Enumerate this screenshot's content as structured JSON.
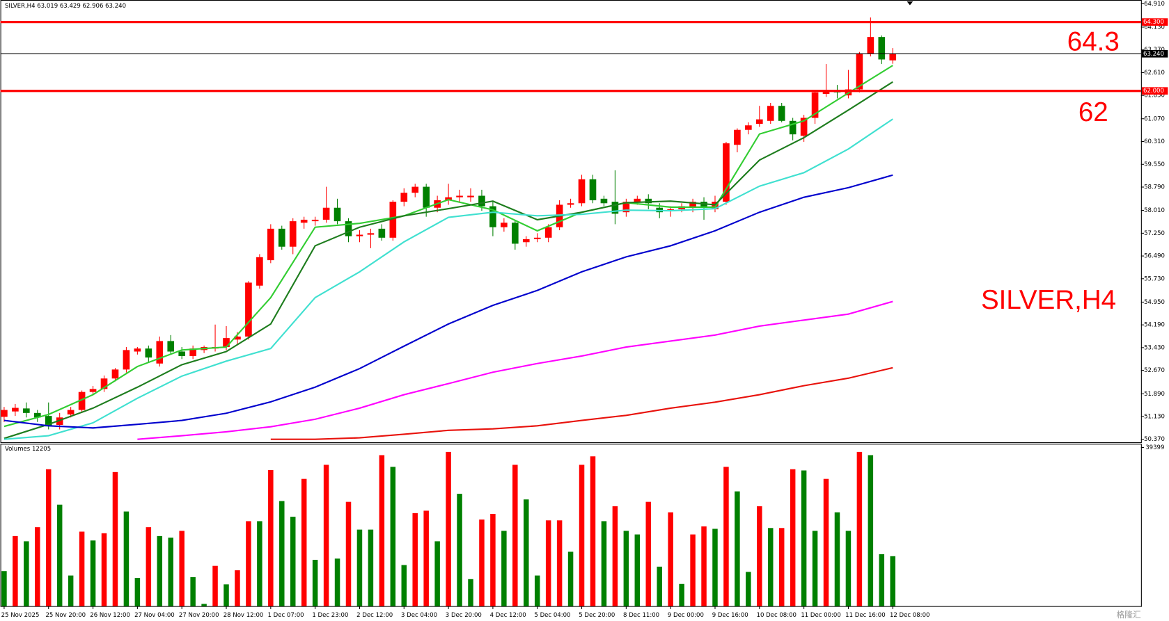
{
  "chart_data": [
    {
      "type": "candlestick",
      "title": "SILVER,H4  63.019 63.429 62.906 63.240",
      "categories": [
        "25 Nov 2025",
        null,
        null,
        null,
        "25 Nov 20:00",
        null,
        null,
        null,
        "26 Nov 12:00",
        null,
        null,
        null,
        "27 Nov 04:00",
        null,
        null,
        null,
        "27 Nov 20:00",
        null,
        null,
        null,
        "28 Nov 12:00",
        null,
        null,
        null,
        "1 Dec 07:00",
        null,
        null,
        null,
        "1 Dec 23:00",
        null,
        null,
        null,
        "2 Dec 12:00",
        null,
        null,
        null,
        "3 Dec 04:00",
        null,
        null,
        null,
        "3 Dec 20:00",
        null,
        null,
        null,
        "4 Dec 12:00",
        null,
        null,
        null,
        "5 Dec 04:00",
        null,
        null,
        null,
        "5 Dec 20:00",
        null,
        null,
        null,
        "8 Dec 11:00",
        null,
        null,
        null,
        "9 Dec 00:00",
        null,
        null,
        null,
        "9 Dec 16:00",
        null,
        null,
        null,
        "10 Dec 08:00",
        null,
        null,
        null,
        "11 Dec 00:00",
        null,
        null,
        null,
        "11 Dec 16:00",
        null,
        null,
        null,
        "12 Dec 08:00"
      ],
      "open": [
        51.12,
        51.3,
        51.4,
        51.25,
        51.15,
        50.85,
        51.2,
        51.35,
        51.95,
        52.05,
        52.4,
        52.7,
        53.3,
        53.4,
        52.9,
        53.65,
        53.3,
        53.15,
        53.35,
        53.4,
        53.45,
        53.7,
        53.8,
        55.5,
        56.35,
        57.4,
        56.8,
        57.6,
        57.65,
        57.7,
        58.1,
        57.65,
        57.15,
        57.2,
        57.4,
        57.1,
        58.3,
        58.6,
        58.8,
        58.1,
        58.35,
        58.45,
        58.45,
        58.5,
        58.15,
        57.45,
        57.6,
        56.95,
        57.05,
        57.1,
        57.45,
        58.2,
        58.25,
        59.05,
        58.4,
        58.3,
        57.95,
        58.3,
        58.4,
        58.1,
        58.0,
        58.05,
        58.1,
        58.3,
        58.05,
        58.3,
        60.2,
        60.7,
        60.9,
        61.0,
        61.5,
        61.0,
        60.5,
        61.1,
        61.9,
        62.0,
        61.85,
        62.05,
        63.25,
        63.8,
        63.019
      ],
      "high": [
        51.45,
        51.55,
        51.6,
        51.35,
        51.6,
        51.25,
        51.45,
        52.0,
        52.15,
        52.5,
        52.75,
        53.45,
        53.45,
        53.5,
        53.8,
        53.85,
        53.45,
        53.5,
        53.5,
        54.2,
        54.15,
        53.95,
        55.65,
        56.55,
        57.55,
        57.5,
        57.75,
        57.8,
        57.8,
        58.8,
        58.4,
        57.75,
        57.35,
        57.4,
        57.55,
        58.35,
        58.75,
        58.9,
        58.9,
        58.5,
        58.9,
        58.7,
        58.75,
        58.7,
        58.3,
        57.75,
        57.7,
        57.15,
        57.25,
        57.55,
        58.35,
        58.4,
        59.2,
        59.2,
        58.5,
        59.35,
        58.4,
        58.5,
        58.55,
        58.25,
        58.15,
        58.25,
        58.4,
        58.45,
        58.5,
        60.3,
        60.75,
        60.95,
        61.5,
        61.6,
        61.6,
        61.1,
        61.2,
        62.0,
        62.9,
        62.2,
        62.7,
        63.3,
        64.45,
        63.85,
        63.429
      ],
      "low": [
        50.95,
        51.15,
        51.1,
        50.95,
        50.7,
        50.7,
        51.1,
        51.25,
        51.85,
        51.95,
        52.3,
        52.6,
        53.2,
        52.95,
        52.8,
        53.2,
        53.05,
        53.05,
        53.25,
        53.3,
        53.35,
        53.55,
        53.7,
        55.4,
        56.25,
        56.7,
        56.55,
        57.4,
        57.5,
        57.6,
        57.55,
        56.95,
        56.95,
        56.75,
        57.0,
        57.0,
        58.15,
        58.45,
        57.8,
        57.95,
        58.2,
        58.3,
        58.3,
        58.0,
        57.15,
        57.3,
        56.7,
        56.8,
        56.95,
        56.95,
        57.35,
        58.1,
        58.15,
        58.25,
        58.15,
        57.55,
        57.8,
        58.2,
        58.05,
        57.75,
        57.8,
        57.95,
        57.95,
        57.7,
        57.95,
        58.2,
        59.95,
        60.55,
        60.8,
        60.9,
        60.95,
        60.35,
        60.3,
        60.9,
        61.8,
        61.75,
        61.75,
        61.95,
        63.15,
        62.9,
        62.906
      ],
      "close": [
        51.35,
        51.42,
        51.25,
        51.1,
        50.8,
        51.1,
        51.35,
        51.95,
        52.05,
        52.4,
        52.7,
        53.35,
        53.4,
        53.1,
        53.65,
        53.3,
        53.15,
        53.4,
        53.45,
        53.45,
        53.75,
        53.8,
        55.6,
        56.45,
        57.4,
        56.8,
        57.65,
        57.7,
        57.7,
        58.1,
        57.65,
        57.15,
        57.2,
        57.25,
        57.1,
        58.3,
        58.6,
        58.8,
        58.1,
        58.35,
        58.45,
        58.5,
        58.5,
        58.15,
        57.45,
        57.6,
        56.9,
        57.05,
        57.1,
        57.45,
        58.2,
        58.25,
        59.05,
        58.35,
        58.25,
        57.9,
        58.3,
        58.4,
        58.25,
        57.95,
        58.05,
        58.15,
        58.3,
        58.1,
        58.3,
        60.25,
        60.7,
        60.85,
        61.05,
        61.5,
        61.0,
        60.55,
        61.1,
        61.95,
        62.0,
        61.95,
        62.05,
        63.25,
        63.8,
        63.05,
        63.24
      ],
      "up_color": "#ff0000",
      "down_color": "#008000",
      "ylim": [
        50.37,
        64.91
      ],
      "yticks": [
        {
          "value": 64.91,
          "label": "64.910"
        },
        {
          "value": 64.13,
          "label": "64.130"
        },
        {
          "value": 63.37,
          "label": "63.370"
        },
        {
          "value": 62.61,
          "label": "62.610"
        },
        {
          "value": 61.85,
          "label": "61.850"
        },
        {
          "value": 61.07,
          "label": "61.070"
        },
        {
          "value": 60.31,
          "label": "60.310"
        },
        {
          "value": 59.55,
          "label": "59.550"
        },
        {
          "value": 58.79,
          "label": "58.790"
        },
        {
          "value": 58.01,
          "label": "58.010"
        },
        {
          "value": 57.25,
          "label": "57.250"
        },
        {
          "value": 56.49,
          "label": "56.490"
        },
        {
          "value": 55.73,
          "label": "55.730"
        },
        {
          "value": 54.95,
          "label": "54.950"
        },
        {
          "value": 54.19,
          "label": "54.190"
        },
        {
          "value": 53.43,
          "label": "53.430"
        },
        {
          "value": 52.67,
          "label": "52.670"
        },
        {
          "value": 51.89,
          "label": "51.890"
        },
        {
          "value": 51.13,
          "label": "51.130"
        },
        {
          "value": 50.37,
          "label": "50.370"
        }
      ],
      "lines": [
        {
          "color": "#32cd32",
          "x": [
            0,
            4,
            8,
            12,
            16,
            20,
            24,
            28,
            32,
            36,
            40,
            44,
            48,
            52,
            56,
            60,
            64,
            68,
            72,
            76,
            80
          ],
          "values": [
            50.8,
            51.2,
            51.86,
            52.8,
            53.35,
            53.45,
            55.1,
            57.45,
            57.58,
            57.83,
            58.37,
            58.03,
            57.33,
            57.95,
            58.27,
            58.12,
            58.12,
            60.56,
            61.0,
            61.93,
            62.85
          ]
        },
        {
          "color": "#1e7d1e",
          "x": [
            0,
            4,
            8,
            12,
            16,
            20,
            24,
            28,
            32,
            36,
            40,
            44,
            48,
            52,
            56,
            60,
            64,
            68,
            72,
            76,
            80
          ],
          "values": [
            50.4,
            50.87,
            51.41,
            52.11,
            52.86,
            53.3,
            54.22,
            56.83,
            57.45,
            57.83,
            58.07,
            58.32,
            57.7,
            57.95,
            58.27,
            58.32,
            58.2,
            59.69,
            60.44,
            61.36,
            62.3
          ]
        },
        {
          "color": "#40e0d0",
          "x": [
            0,
            4,
            8,
            12,
            16,
            20,
            24,
            28,
            32,
            36,
            40,
            44,
            48,
            52,
            56,
            60,
            64,
            68,
            72,
            76,
            80
          ],
          "values": [
            50.37,
            50.49,
            50.92,
            51.74,
            52.48,
            52.98,
            53.4,
            55.1,
            55.96,
            56.96,
            57.78,
            57.95,
            57.83,
            57.88,
            58.02,
            58.0,
            58.07,
            58.82,
            59.27,
            60.06,
            61.06
          ]
        },
        {
          "color": "#0000cd",
          "x": [
            0,
            4,
            8,
            12,
            16,
            20,
            24,
            28,
            32,
            36,
            40,
            44,
            48,
            52,
            56,
            60,
            64,
            68,
            72,
            76,
            80
          ],
          "values": [
            51.0,
            50.82,
            50.75,
            50.87,
            51.0,
            51.24,
            51.62,
            52.11,
            52.73,
            53.48,
            54.22,
            54.84,
            55.34,
            55.96,
            56.46,
            56.83,
            57.33,
            57.95,
            58.45,
            58.77,
            59.19
          ]
        },
        {
          "color": "#ff00ff",
          "x": [
            12,
            16,
            20,
            24,
            28,
            32,
            36,
            40,
            44,
            48,
            52,
            56,
            60,
            64,
            68,
            72,
            76,
            80
          ],
          "values": [
            50.37,
            50.49,
            50.62,
            50.79,
            51.04,
            51.41,
            51.86,
            52.23,
            52.61,
            52.9,
            53.15,
            53.45,
            53.65,
            53.85,
            54.15,
            54.35,
            54.55,
            54.97
          ]
        },
        {
          "color": "#e8120c",
          "x": [
            24,
            28,
            32,
            36,
            40,
            44,
            48,
            52,
            56,
            60,
            64,
            68,
            72,
            76,
            80
          ],
          "values": [
            50.37,
            50.37,
            50.42,
            50.54,
            50.67,
            50.72,
            50.82,
            51.0,
            51.17,
            51.41,
            51.61,
            51.86,
            52.16,
            52.41,
            52.76
          ]
        }
      ],
      "hlines": [
        {
          "value": 64.3,
          "label": "64.300",
          "color": "#ff0000"
        },
        {
          "value": 62.0,
          "label": "62.000",
          "color": "#ff0000"
        },
        {
          "value": 63.24,
          "label": "63.240",
          "color": "#000000"
        }
      ],
      "annotations": [
        "64.3",
        "62",
        "SILVER,H4"
      ]
    },
    {
      "type": "bar",
      "title": "Volumes 12205",
      "values": [
        8700,
        17400,
        16100,
        19600,
        34000,
        25200,
        7600,
        18500,
        16300,
        18100,
        33300,
        23500,
        7000,
        19600,
        17400,
        17000,
        18700,
        7200,
        550,
        10000,
        5400,
        8900,
        21100,
        21100,
        33800,
        26100,
        22200,
        31600,
        11500,
        35100,
        11800,
        25900,
        19000,
        19000,
        37500,
        34600,
        10200,
        23100,
        23700,
        16100,
        38300,
        27900,
        6700,
        21500,
        22900,
        18700,
        35100,
        26500,
        7600,
        21300,
        21300,
        13500,
        35100,
        37200,
        21100,
        24800,
        18700,
        17800,
        25900,
        9800,
        23300,
        5500,
        17800,
        19800,
        19200,
        34600,
        28500,
        8500,
        24800,
        19400,
        19400,
        34000,
        33700,
        18700,
        31600,
        23300,
        18700,
        38300,
        37500,
        12900,
        12400
      ],
      "colors": [
        "#008000",
        "#ff0000",
        "#008000",
        "#ff0000",
        "#ff0000",
        "#008000",
        "#008000",
        "#ff0000",
        "#008000",
        "#ff0000",
        "#ff0000",
        "#008000",
        "#008000",
        "#ff0000",
        "#008000",
        "#008000",
        "#ff0000",
        "#008000",
        "#008000",
        "#ff0000",
        "#008000",
        "#ff0000",
        "#ff0000",
        "#008000",
        "#ff0000",
        "#008000",
        "#008000",
        "#ff0000",
        "#008000",
        "#ff0000",
        "#008000",
        "#ff0000",
        "#008000",
        "#008000",
        "#ff0000",
        "#008000",
        "#008000",
        "#ff0000",
        "#ff0000",
        "#008000",
        "#ff0000",
        "#008000",
        "#008000",
        "#ff0000",
        "#ff0000",
        "#008000",
        "#ff0000",
        "#008000",
        "#008000",
        "#ff0000",
        "#ff0000",
        "#008000",
        "#ff0000",
        "#ff0000",
        "#008000",
        "#ff0000",
        "#008000",
        "#008000",
        "#ff0000",
        "#008000",
        "#ff0000",
        "#008000",
        "#ff0000",
        "#ff0000",
        "#008000",
        "#ff0000",
        "#008000",
        "#008000",
        "#ff0000",
        "#008000",
        "#ff0000",
        "#ff0000",
        "#008000",
        "#008000",
        "#ff0000",
        "#008000",
        "#008000",
        "#ff0000",
        "#008000",
        "#008000",
        "#008000"
      ],
      "ylim": [
        0,
        39399
      ],
      "yticks": [
        39399
      ]
    }
  ],
  "watermark": "格隆汇"
}
